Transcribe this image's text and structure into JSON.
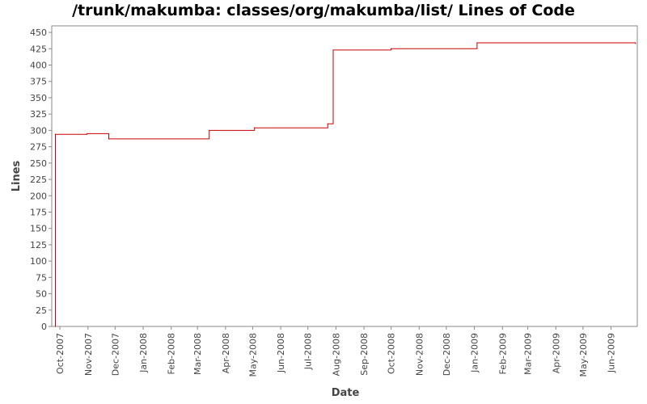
{
  "chart_data": {
    "type": "line",
    "title": "/trunk/makumba: classes/org/makumba/list/ Lines of Code",
    "xlabel": "Date",
    "ylabel": "Lines",
    "ylim": [
      0,
      460
    ],
    "yticks": [
      0,
      25,
      50,
      75,
      100,
      125,
      150,
      175,
      200,
      225,
      250,
      275,
      300,
      325,
      350,
      375,
      400,
      425,
      450
    ],
    "xlim": [
      "2007-09-22",
      "2009-06-30"
    ],
    "xticks": [
      {
        "date": "2007-10-01",
        "label": "Oct-2007"
      },
      {
        "date": "2007-11-01",
        "label": "Nov-2007"
      },
      {
        "date": "2007-12-01",
        "label": "Dec-2007"
      },
      {
        "date": "2008-01-01",
        "label": "Jan-2008"
      },
      {
        "date": "2008-02-01",
        "label": "Feb-2008"
      },
      {
        "date": "2008-03-01",
        "label": "Mar-2008"
      },
      {
        "date": "2008-04-01",
        "label": "Apr-2008"
      },
      {
        "date": "2008-05-01",
        "label": "May-2008"
      },
      {
        "date": "2008-06-01",
        "label": "Jun-2008"
      },
      {
        "date": "2008-07-01",
        "label": "Jul-2008"
      },
      {
        "date": "2008-08-01",
        "label": "Aug-2008"
      },
      {
        "date": "2008-09-01",
        "label": "Sep-2008"
      },
      {
        "date": "2008-10-01",
        "label": "Oct-2008"
      },
      {
        "date": "2008-11-01",
        "label": "Nov-2008"
      },
      {
        "date": "2008-12-01",
        "label": "Dec-2008"
      },
      {
        "date": "2009-01-01",
        "label": "Jan-2009"
      },
      {
        "date": "2009-02-01",
        "label": "Feb-2009"
      },
      {
        "date": "2009-03-01",
        "label": "Mar-2009"
      },
      {
        "date": "2009-04-01",
        "label": "Apr-2009"
      },
      {
        "date": "2009-05-01",
        "label": "May-2009"
      },
      {
        "date": "2009-06-01",
        "label": "Jun-2009"
      }
    ],
    "series": [
      {
        "color": "#cc0000",
        "step": true,
        "points": [
          {
            "x": "2007-09-26",
            "y": 0
          },
          {
            "x": "2007-09-26",
            "y": 294
          },
          {
            "x": "2007-10-31",
            "y": 295
          },
          {
            "x": "2007-11-24",
            "y": 287
          },
          {
            "x": "2008-03-14",
            "y": 300
          },
          {
            "x": "2008-05-03",
            "y": 304
          },
          {
            "x": "2008-07-23",
            "y": 310
          },
          {
            "x": "2008-07-29",
            "y": 423
          },
          {
            "x": "2008-10-01",
            "y": 425
          },
          {
            "x": "2009-01-04",
            "y": 434
          },
          {
            "x": "2009-06-28",
            "y": 433
          }
        ]
      }
    ],
    "grid": false,
    "legend": "none"
  }
}
